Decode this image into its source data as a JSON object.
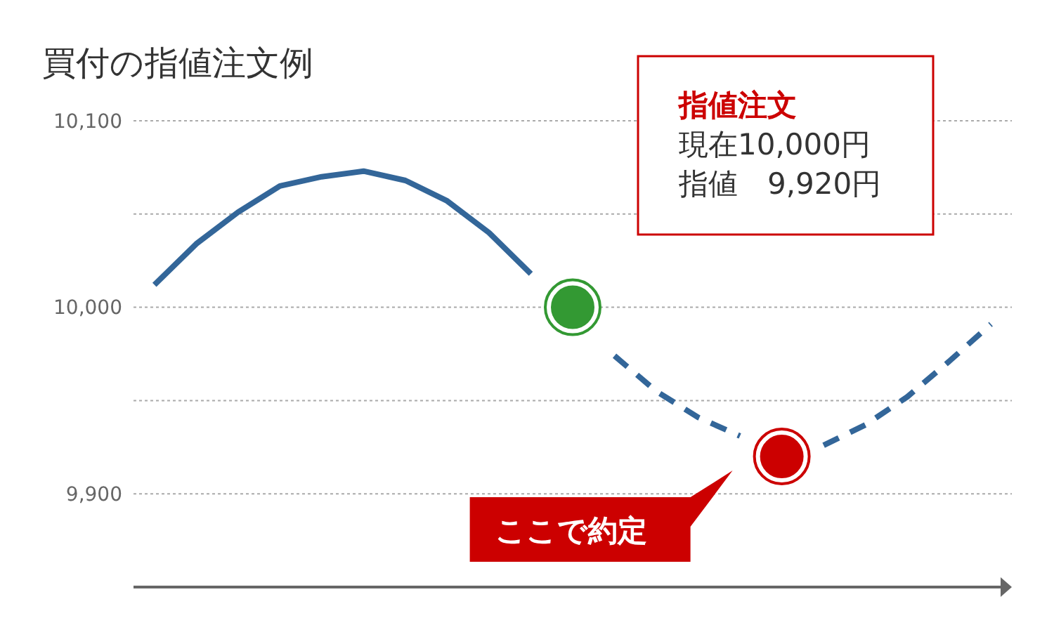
{
  "chart_data": {
    "type": "line",
    "title": "買付の指値注文例",
    "categories": [
      null,
      null,
      null,
      null,
      null,
      null,
      null,
      null,
      null,
      null,
      null,
      null,
      null,
      null,
      null,
      null,
      null,
      null,
      null,
      null,
      null
    ],
    "series": [
      {
        "color": "#336699",
        "line_style": "solid",
        "values": [
          10012,
          10034,
          10051,
          10065,
          10070,
          10073,
          10068,
          10057,
          10040,
          10018,
          null,
          null,
          null,
          null,
          null,
          null,
          null,
          null,
          null,
          null,
          null
        ]
      },
      {
        "color": "#336699",
        "line_style": "dashed",
        "values": [
          null,
          null,
          null,
          null,
          null,
          null,
          null,
          null,
          null,
          null,
          null,
          9974,
          9955,
          9941,
          9931,
          null,
          9926,
          9937,
          9952,
          9971,
          9991
        ]
      },
      {
        "type": "scatter",
        "marker": "circle",
        "color": "#339933",
        "values": [
          null,
          null,
          null,
          null,
          null,
          null,
          null,
          null,
          null,
          null,
          10000,
          null,
          null,
          null,
          null,
          null,
          null,
          null,
          null,
          null,
          null
        ]
      },
      {
        "type": "scatter",
        "marker": "circle",
        "color": "#cc0000",
        "values": [
          null,
          null,
          null,
          null,
          null,
          null,
          null,
          null,
          null,
          null,
          null,
          null,
          null,
          null,
          null,
          9920,
          null,
          null,
          null,
          null,
          null
        ]
      }
    ],
    "ylim": [
      9850,
      10100
    ],
    "yticks": [
      {
        "value": 9900,
        "label": "9,900"
      },
      {
        "value": 9950,
        "label": null
      },
      {
        "value": 10000,
        "label": "10,000"
      },
      {
        "value": 10050,
        "label": null
      },
      {
        "value": 10100,
        "label": "10,100"
      }
    ],
    "grid": "y",
    "tick_labels": "y",
    "annotations": [
      "指値注文",
      "現在10,000円",
      "指値　9,920円",
      "ここで約定"
    ]
  }
}
